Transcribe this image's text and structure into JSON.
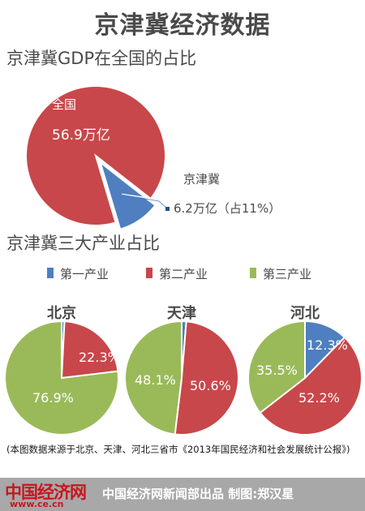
{
  "page": {
    "title": "京津冀经济数据",
    "footnote": "(本图数据来源于北京、天津、河北三省市《2013年国民经济和社会发展统计公报》)",
    "logo_text": "中国经济网",
    "logo_url": "www.ce.cn",
    "credit": "中国经济网新闻部出品  制图:郑汉星"
  },
  "colors": {
    "red": "#c8474a",
    "blue": "#4f7fc0",
    "green": "#9aba59",
    "text": "#4a4a4a"
  },
  "chart_data": [
    {
      "type": "pie",
      "title": "京津冀GDP在全国的占比",
      "slices": [
        {
          "label": "全国",
          "value_label": "56.9万亿",
          "value": 56.9,
          "color": "#c8474a"
        },
        {
          "label": "京津冀",
          "value_label": "6.2万亿（占11%）",
          "value": 6.2,
          "color": "#4f7fc0"
        }
      ]
    },
    {
      "type": "pie",
      "title": "京津冀三大产业占比",
      "legend": [
        "第一产业",
        "第二产业",
        "第三产业"
      ],
      "legend_placement": "top",
      "colors": [
        "#4f7fc0",
        "#c8474a",
        "#9aba59"
      ],
      "pies": [
        {
          "name": "北京",
          "values": [
            0.8,
            22.3,
            76.9
          ],
          "labels": [
            "",
            "22.3%",
            "76.9%"
          ]
        },
        {
          "name": "天津",
          "values": [
            1.3,
            50.6,
            48.1
          ],
          "labels": [
            "",
            "50.6%",
            "48.1%"
          ]
        },
        {
          "name": "河北",
          "values": [
            12.3,
            52.2,
            35.5
          ],
          "labels": [
            "12.3%",
            "52.2%",
            "35.5%"
          ]
        }
      ]
    }
  ]
}
